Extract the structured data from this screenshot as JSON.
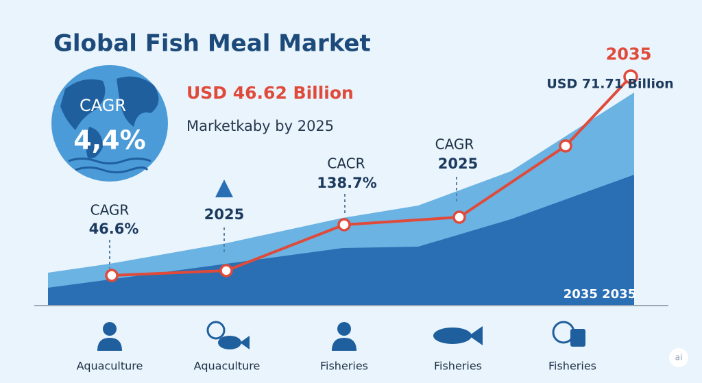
{
  "header": {
    "title": "Global Fish Meal Market"
  },
  "globe": {
    "label": "CAGR",
    "value": "4,4%"
  },
  "highlight": {
    "value": "USD 46.62 Billion",
    "subtitle": "Marketkaby by 2025"
  },
  "callouts": [
    {
      "label": "CAGR",
      "value": "46.6%"
    },
    {
      "value": "2025"
    },
    {
      "label": "CACR",
      "value": "138.7%"
    },
    {
      "label": "CAGR",
      "value": "2025"
    }
  ],
  "end_point": {
    "year": "2035",
    "value": "USD 71.71 Billion"
  },
  "area_label": "2035 2035",
  "segments": [
    "Aquaculture",
    "Aquaculture",
    "Fisheries",
    "Fisheries",
    "Fisheries"
  ],
  "badge": "ai"
}
